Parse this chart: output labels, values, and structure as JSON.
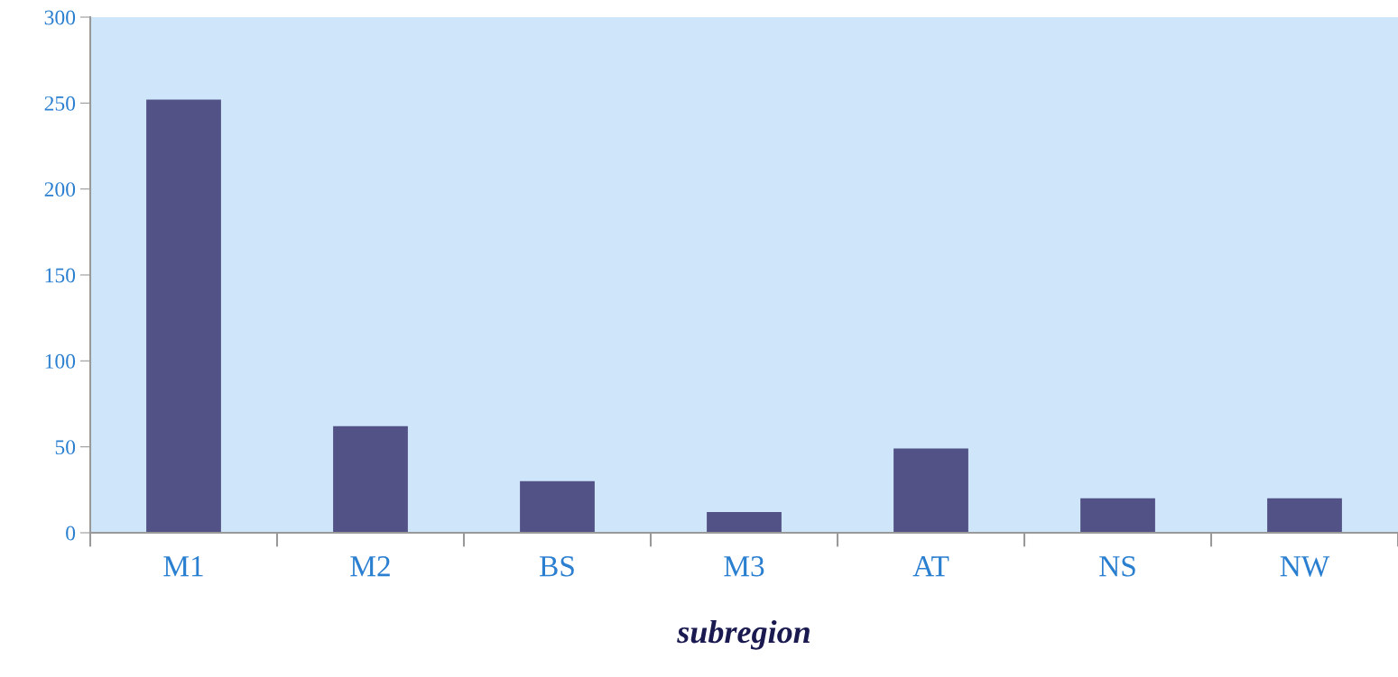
{
  "chart_data": {
    "type": "bar",
    "xlabel": "subregion",
    "categories": [
      "M1",
      "M2",
      "BS",
      "M3",
      "AT",
      "NS",
      "NW"
    ],
    "values": [
      252,
      62,
      30,
      12,
      49,
      20,
      20
    ],
    "color": "#525286",
    "ylim": [
      0,
      300
    ],
    "yticks": [
      0,
      50,
      100,
      150,
      200,
      250,
      300
    ],
    "grid": false,
    "legend": false
  }
}
